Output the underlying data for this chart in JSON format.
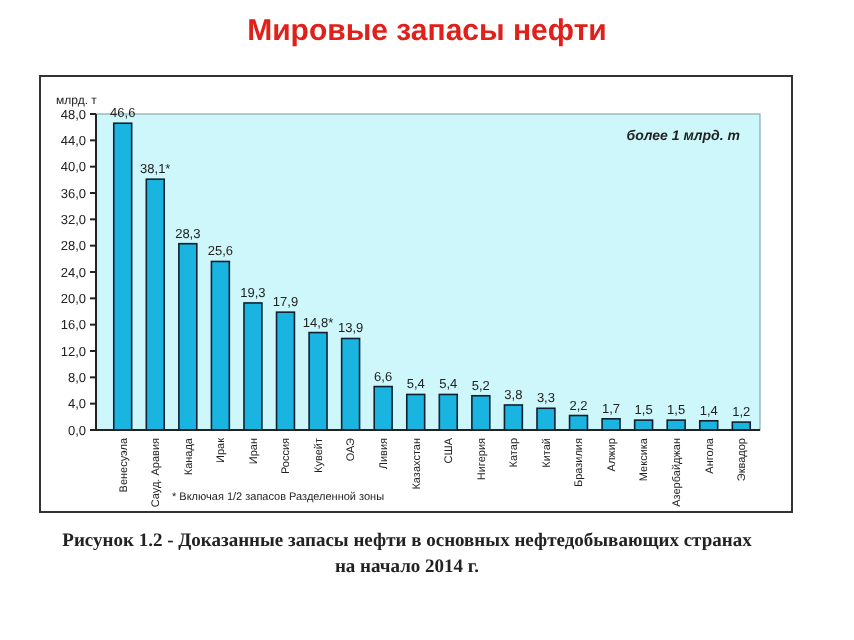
{
  "chart_data": {
    "type": "bar",
    "title": "Мировые запасы нефти",
    "ylabel": "млрд. т",
    "categories": [
      "Венесуэла",
      "Сауд. Аравия",
      "Канада",
      "Ирак",
      "Иран",
      "Россия",
      "Кувейт",
      "ОАЭ",
      "Ливия",
      "Казахстан",
      "США",
      "Нигерия",
      "Катар",
      "Китай",
      "Бразилия",
      "Алжир",
      "Мексика",
      "Азербайджан",
      "Ангола",
      "Эквадор"
    ],
    "values": [
      46.6,
      38.1,
      28.3,
      25.6,
      19.3,
      17.9,
      14.8,
      13.9,
      6.6,
      5.4,
      5.4,
      5.2,
      3.8,
      3.3,
      2.2,
      1.7,
      1.5,
      1.5,
      1.4,
      1.2
    ],
    "value_labels": [
      "46,6",
      "38,1*",
      "28,3",
      "25,6",
      "19,3",
      "17,9",
      "14,8*",
      "13,9",
      "6,6",
      "5,4",
      "5,4",
      "5,2",
      "3,8",
      "3,3",
      "2,2",
      "1,7",
      "1,5",
      "1,5",
      "1,4",
      "1,2"
    ],
    "color": "#1ab4e0",
    "ylim": [
      0,
      48
    ],
    "yticks": [
      {
        "value": 0,
        "label": "0,0"
      },
      {
        "value": 4,
        "label": "4,0"
      },
      {
        "value": 8,
        "label": "8,0"
      },
      {
        "value": 12,
        "label": "12,0"
      },
      {
        "value": 16,
        "label": "16,0"
      },
      {
        "value": 20,
        "label": "20,0"
      },
      {
        "value": 24,
        "label": "24,0"
      },
      {
        "value": 28,
        "label": "28,0"
      },
      {
        "value": 32,
        "label": "32,0"
      },
      {
        "value": 36,
        "label": "36,0"
      },
      {
        "value": 40,
        "label": "40,0"
      },
      {
        "value": 44,
        "label": "44,0"
      },
      {
        "value": 48,
        "label": "48,0"
      }
    ],
    "grid": false,
    "annotations": [
      "более 1 млрд. т",
      "* Включая 1/2 запасов Разделенной зоны",
      "Рисунок 1.2 - Доказанные запасы нефти  в основных нефтедобывающих странах на начало 2014 г."
    ]
  }
}
